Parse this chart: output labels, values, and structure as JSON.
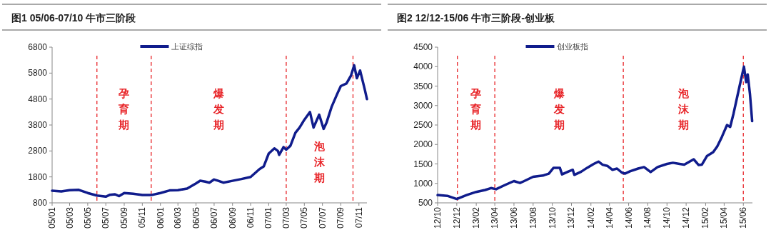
{
  "chart_data": [
    {
      "type": "line",
      "title": "图1  05/06-07/10 牛市三阶段",
      "legend": "top",
      "line_style": "solid",
      "marker": "none",
      "grid": false,
      "xlim": [
        "2005-01-01",
        "2007-11-28"
      ],
      "xticks": [
        {
          "value": "2005-01",
          "label": "05/01"
        },
        {
          "value": "2005-03",
          "label": "05/03"
        },
        {
          "value": "2005-05",
          "label": "05/05"
        },
        {
          "value": "2005-07",
          "label": "05/07"
        },
        {
          "value": "2005-09",
          "label": "05/09"
        },
        {
          "value": "2005-11",
          "label": "05/11"
        },
        {
          "value": "2006-01",
          "label": "06/01"
        },
        {
          "value": "2006-03",
          "label": "06/03"
        },
        {
          "value": "2006-05",
          "label": "06/05"
        },
        {
          "value": "2006-07",
          "label": "06/07"
        },
        {
          "value": "2006-09",
          "label": "06/09"
        },
        {
          "value": "2006-11",
          "label": "06/11"
        },
        {
          "value": "2007-01",
          "label": "07/01"
        },
        {
          "value": "2007-03",
          "label": "07/03"
        },
        {
          "value": "2007-05",
          "label": "07/05"
        },
        {
          "value": "2007-07",
          "label": "07/07"
        },
        {
          "value": "2007-09",
          "label": "07/09"
        },
        {
          "value": "2007-11",
          "label": "07/11"
        }
      ],
      "ylim": [
        800,
        6800
      ],
      "yticks": [
        800,
        1800,
        2800,
        3800,
        4800,
        5800,
        6800
      ],
      "ref_lines": [
        {
          "axis": "x",
          "value": "2005-06-01",
          "color": "#e8262a",
          "line_style": "dashed"
        },
        {
          "axis": "x",
          "value": "2005-12-01",
          "color": "#e8262a",
          "line_style": "dashed"
        },
        {
          "axis": "x",
          "value": "2007-03-01",
          "color": "#e8262a",
          "line_style": "dashed"
        },
        {
          "axis": "x",
          "value": "2007-10-12",
          "color": "#e8262a",
          "line_style": "dashed"
        }
      ],
      "annotations": [
        "孕育期",
        "爆发期",
        "泡沫期"
      ],
      "series": [
        {
          "name": "上证综指",
          "color": "#101c8c",
          "x": [
            "2005-01-01",
            "2005-02-01",
            "2005-03-01",
            "2005-04-01",
            "2005-05-01",
            "2005-06-01",
            "2005-07-01",
            "2005-07-15",
            "2005-08-01",
            "2005-08-15",
            "2005-09-01",
            "2005-10-01",
            "2005-11-01",
            "2005-12-01",
            "2006-01-01",
            "2006-02-01",
            "2006-03-01",
            "2006-04-01",
            "2006-05-01",
            "2006-05-15",
            "2006-06-01",
            "2006-06-15",
            "2006-07-01",
            "2006-07-15",
            "2006-08-01",
            "2006-09-01",
            "2006-10-01",
            "2006-11-01",
            "2006-12-01",
            "2006-12-15",
            "2007-01-01",
            "2007-01-20",
            "2007-02-01",
            "2007-02-05",
            "2007-02-20",
            "2007-03-01",
            "2007-03-15",
            "2007-04-01",
            "2007-04-15",
            "2007-05-01",
            "2007-05-20",
            "2007-06-01",
            "2007-06-20",
            "2007-07-05",
            "2007-07-15",
            "2007-08-01",
            "2007-08-20",
            "2007-09-01",
            "2007-09-20",
            "2007-10-05",
            "2007-10-16",
            "2007-10-25",
            "2007-11-05",
            "2007-11-20",
            "2007-11-28"
          ],
          "values": [
            1270,
            1240,
            1290,
            1300,
            1180,
            1080,
            1040,
            1110,
            1130,
            1060,
            1180,
            1150,
            1100,
            1100,
            1180,
            1280,
            1290,
            1350,
            1550,
            1650,
            1620,
            1580,
            1700,
            1650,
            1580,
            1650,
            1720,
            1800,
            2100,
            2200,
            2700,
            2900,
            2800,
            2650,
            2950,
            2850,
            3000,
            3500,
            3700,
            4000,
            4300,
            3700,
            4200,
            3650,
            3900,
            4500,
            5000,
            5300,
            5400,
            5700,
            6100,
            5600,
            5900,
            5200,
            4800
          ]
        }
      ]
    },
    {
      "type": "line",
      "title": "图2  12/12-15/06 牛市三阶段-创业板",
      "legend": "top",
      "line_style": "solid",
      "marker": "none",
      "grid": false,
      "xlim": [
        "2012-10-01",
        "2015-06-30"
      ],
      "xticks": [
        {
          "value": "2012-10",
          "label": "12/10"
        },
        {
          "value": "2012-12",
          "label": "12/12"
        },
        {
          "value": "2013-02",
          "label": "13/02"
        },
        {
          "value": "2013-04",
          "label": "13/04"
        },
        {
          "value": "2013-06",
          "label": "13/06"
        },
        {
          "value": "2013-08",
          "label": "13/08"
        },
        {
          "value": "2013-10",
          "label": "13/10"
        },
        {
          "value": "2013-12",
          "label": "13/12"
        },
        {
          "value": "2014-02",
          "label": "14/02"
        },
        {
          "value": "2014-04",
          "label": "14/04"
        },
        {
          "value": "2014-06",
          "label": "14/06"
        },
        {
          "value": "2014-08",
          "label": "14/08"
        },
        {
          "value": "2014-10",
          "label": "14/10"
        },
        {
          "value": "2014-12",
          "label": "14/12"
        },
        {
          "value": "2015-02",
          "label": "15/02"
        },
        {
          "value": "2015-04",
          "label": "15/04"
        },
        {
          "value": "2015-06",
          "label": "15/06"
        }
      ],
      "ylim": [
        500,
        4500
      ],
      "yticks": [
        500,
        1000,
        1500,
        2000,
        2500,
        3000,
        3500,
        4000,
        4500
      ],
      "ref_lines": [
        {
          "axis": "x",
          "value": "2012-12-03",
          "color": "#e8262a",
          "line_style": "dashed"
        },
        {
          "axis": "x",
          "value": "2013-04-01",
          "color": "#e8262a",
          "line_style": "dashed"
        },
        {
          "axis": "x",
          "value": "2014-05-15",
          "color": "#e8262a",
          "line_style": "dashed"
        },
        {
          "axis": "x",
          "value": "2015-06-01",
          "color": "#e8262a",
          "line_style": "dashed"
        }
      ],
      "annotations": [
        "孕育期",
        "爆发期",
        "泡沫期"
      ],
      "series": [
        {
          "name": "创业板指",
          "color": "#101c8c",
          "x": [
            "2012-10-01",
            "2012-11-01",
            "2012-12-01",
            "2013-01-01",
            "2013-02-01",
            "2013-03-01",
            "2013-03-20",
            "2013-04-05",
            "2013-05-01",
            "2013-06-01",
            "2013-06-20",
            "2013-07-01",
            "2013-08-01",
            "2013-09-01",
            "2013-09-20",
            "2013-10-05",
            "2013-10-25",
            "2013-11-01",
            "2013-11-20",
            "2013-12-05",
            "2013-12-10",
            "2014-01-01",
            "2014-01-20",
            "2014-02-10",
            "2014-02-25",
            "2014-03-10",
            "2014-03-25",
            "2014-04-10",
            "2014-04-25",
            "2014-05-10",
            "2014-05-20",
            "2014-06-05",
            "2014-07-01",
            "2014-07-20",
            "2014-08-10",
            "2014-09-01",
            "2014-10-01",
            "2014-10-20",
            "2014-11-10",
            "2014-11-25",
            "2014-12-10",
            "2014-12-25",
            "2015-01-10",
            "2015-01-20",
            "2015-02-05",
            "2015-02-25",
            "2015-03-10",
            "2015-03-25",
            "2015-04-10",
            "2015-04-20",
            "2015-05-01",
            "2015-05-20",
            "2015-06-03",
            "2015-06-10",
            "2015-06-15",
            "2015-06-22",
            "2015-06-29"
          ],
          "values": [
            700,
            680,
            600,
            700,
            780,
            830,
            880,
            850,
            950,
            1060,
            1010,
            1050,
            1170,
            1200,
            1250,
            1400,
            1400,
            1230,
            1300,
            1350,
            1220,
            1300,
            1400,
            1500,
            1560,
            1480,
            1450,
            1350,
            1380,
            1280,
            1250,
            1310,
            1380,
            1420,
            1290,
            1420,
            1500,
            1530,
            1500,
            1480,
            1550,
            1620,
            1470,
            1480,
            1700,
            1800,
            1950,
            2200,
            2500,
            2450,
            2800,
            3500,
            4000,
            3600,
            3800,
            3300,
            2600
          ]
        }
      ]
    }
  ]
}
